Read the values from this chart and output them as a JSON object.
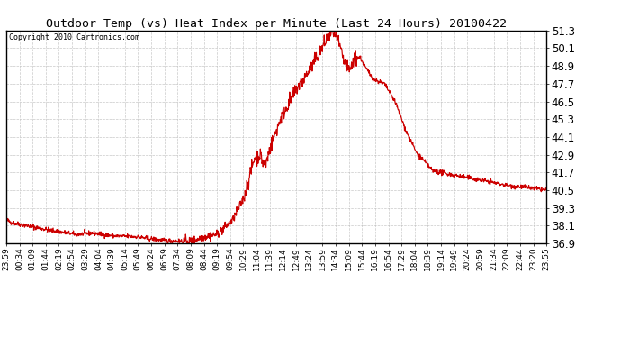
{
  "title": "Outdoor Temp (vs) Heat Index per Minute (Last 24 Hours) 20100422",
  "copyright": "Copyright 2010 Cartronics.com",
  "line_color": "#cc0000",
  "background_color": "#ffffff",
  "grid_color": "#bbbbbb",
  "ylim": [
    36.9,
    51.3
  ],
  "yticks": [
    36.9,
    38.1,
    39.3,
    40.5,
    41.7,
    42.9,
    44.1,
    45.3,
    46.5,
    47.7,
    48.9,
    50.1,
    51.3
  ],
  "xtick_labels": [
    "23:59",
    "00:34",
    "01:09",
    "01:44",
    "02:19",
    "02:54",
    "03:29",
    "04:04",
    "04:39",
    "05:14",
    "05:49",
    "06:24",
    "06:59",
    "07:34",
    "08:09",
    "08:44",
    "09:19",
    "09:54",
    "10:29",
    "11:04",
    "11:39",
    "12:14",
    "12:49",
    "13:24",
    "13:59",
    "14:34",
    "15:09",
    "15:44",
    "16:19",
    "16:54",
    "17:29",
    "18:04",
    "18:39",
    "19:14",
    "19:49",
    "20:24",
    "20:59",
    "21:34",
    "22:09",
    "22:44",
    "23:20",
    "23:55"
  ],
  "num_points": 1440,
  "seed": 42,
  "curve_segments": [
    {
      "t0": 0.0,
      "t1": 0.01,
      "v0": 38.5,
      "v1": 38.3
    },
    {
      "t0": 0.01,
      "t1": 0.08,
      "v0": 38.3,
      "v1": 37.8
    },
    {
      "t0": 0.08,
      "t1": 0.13,
      "v0": 37.8,
      "v1": 37.5
    },
    {
      "t0": 0.13,
      "t1": 0.16,
      "v0": 37.5,
      "v1": 37.6
    },
    {
      "t0": 0.16,
      "t1": 0.2,
      "v0": 37.6,
      "v1": 37.4
    },
    {
      "t0": 0.2,
      "t1": 0.24,
      "v0": 37.4,
      "v1": 37.35
    },
    {
      "t0": 0.24,
      "t1": 0.29,
      "v0": 37.35,
      "v1": 37.1
    },
    {
      "t0": 0.29,
      "t1": 0.32,
      "v0": 37.1,
      "v1": 37.05
    },
    {
      "t0": 0.32,
      "t1": 0.345,
      "v0": 37.05,
      "v1": 37.05
    },
    {
      "t0": 0.345,
      "t1": 0.36,
      "v0": 37.05,
      "v1": 37.3
    },
    {
      "t0": 0.36,
      "t1": 0.39,
      "v0": 37.3,
      "v1": 37.5
    },
    {
      "t0": 0.39,
      "t1": 0.42,
      "v0": 37.5,
      "v1": 38.5
    },
    {
      "t0": 0.42,
      "t1": 0.44,
      "v0": 38.5,
      "v1": 40.0
    },
    {
      "t0": 0.44,
      "t1": 0.46,
      "v0": 40.0,
      "v1": 42.7
    },
    {
      "t0": 0.46,
      "t1": 0.47,
      "v0": 42.7,
      "v1": 42.9
    },
    {
      "t0": 0.47,
      "t1": 0.475,
      "v0": 42.9,
      "v1": 42.4
    },
    {
      "t0": 0.475,
      "t1": 0.48,
      "v0": 42.4,
      "v1": 42.2
    },
    {
      "t0": 0.48,
      "t1": 0.49,
      "v0": 42.2,
      "v1": 43.5
    },
    {
      "t0": 0.49,
      "t1": 0.51,
      "v0": 43.5,
      "v1": 45.5
    },
    {
      "t0": 0.51,
      "t1": 0.54,
      "v0": 45.5,
      "v1": 47.5
    },
    {
      "t0": 0.54,
      "t1": 0.56,
      "v0": 47.5,
      "v1": 48.5
    },
    {
      "t0": 0.56,
      "t1": 0.58,
      "v0": 48.5,
      "v1": 49.8
    },
    {
      "t0": 0.58,
      "t1": 0.595,
      "v0": 49.8,
      "v1": 50.8
    },
    {
      "t0": 0.595,
      "t1": 0.605,
      "v0": 50.8,
      "v1": 51.3
    },
    {
      "t0": 0.605,
      "t1": 0.615,
      "v0": 51.3,
      "v1": 50.5
    },
    {
      "t0": 0.615,
      "t1": 0.625,
      "v0": 50.5,
      "v1": 49.2
    },
    {
      "t0": 0.625,
      "t1": 0.635,
      "v0": 49.2,
      "v1": 48.5
    },
    {
      "t0": 0.635,
      "t1": 0.645,
      "v0": 48.5,
      "v1": 49.4
    },
    {
      "t0": 0.645,
      "t1": 0.655,
      "v0": 49.4,
      "v1": 49.5
    },
    {
      "t0": 0.655,
      "t1": 0.665,
      "v0": 49.5,
      "v1": 48.8
    },
    {
      "t0": 0.665,
      "t1": 0.68,
      "v0": 48.8,
      "v1": 48.0
    },
    {
      "t0": 0.68,
      "t1": 0.7,
      "v0": 48.0,
      "v1": 47.7
    },
    {
      "t0": 0.7,
      "t1": 0.72,
      "v0": 47.7,
      "v1": 46.5
    },
    {
      "t0": 0.72,
      "t1": 0.74,
      "v0": 46.5,
      "v1": 44.5
    },
    {
      "t0": 0.74,
      "t1": 0.76,
      "v0": 44.5,
      "v1": 43.0
    },
    {
      "t0": 0.76,
      "t1": 0.79,
      "v0": 43.0,
      "v1": 41.8
    },
    {
      "t0": 0.79,
      "t1": 0.83,
      "v0": 41.8,
      "v1": 41.5
    },
    {
      "t0": 0.83,
      "t1": 0.86,
      "v0": 41.5,
      "v1": 41.3
    },
    {
      "t0": 0.86,
      "t1": 0.89,
      "v0": 41.3,
      "v1": 41.1
    },
    {
      "t0": 0.89,
      "t1": 0.93,
      "v0": 41.1,
      "v1": 40.8
    },
    {
      "t0": 0.93,
      "t1": 0.96,
      "v0": 40.8,
      "v1": 40.7
    },
    {
      "t0": 0.96,
      "t1": 1.0,
      "v0": 40.7,
      "v1": 40.5
    }
  ]
}
